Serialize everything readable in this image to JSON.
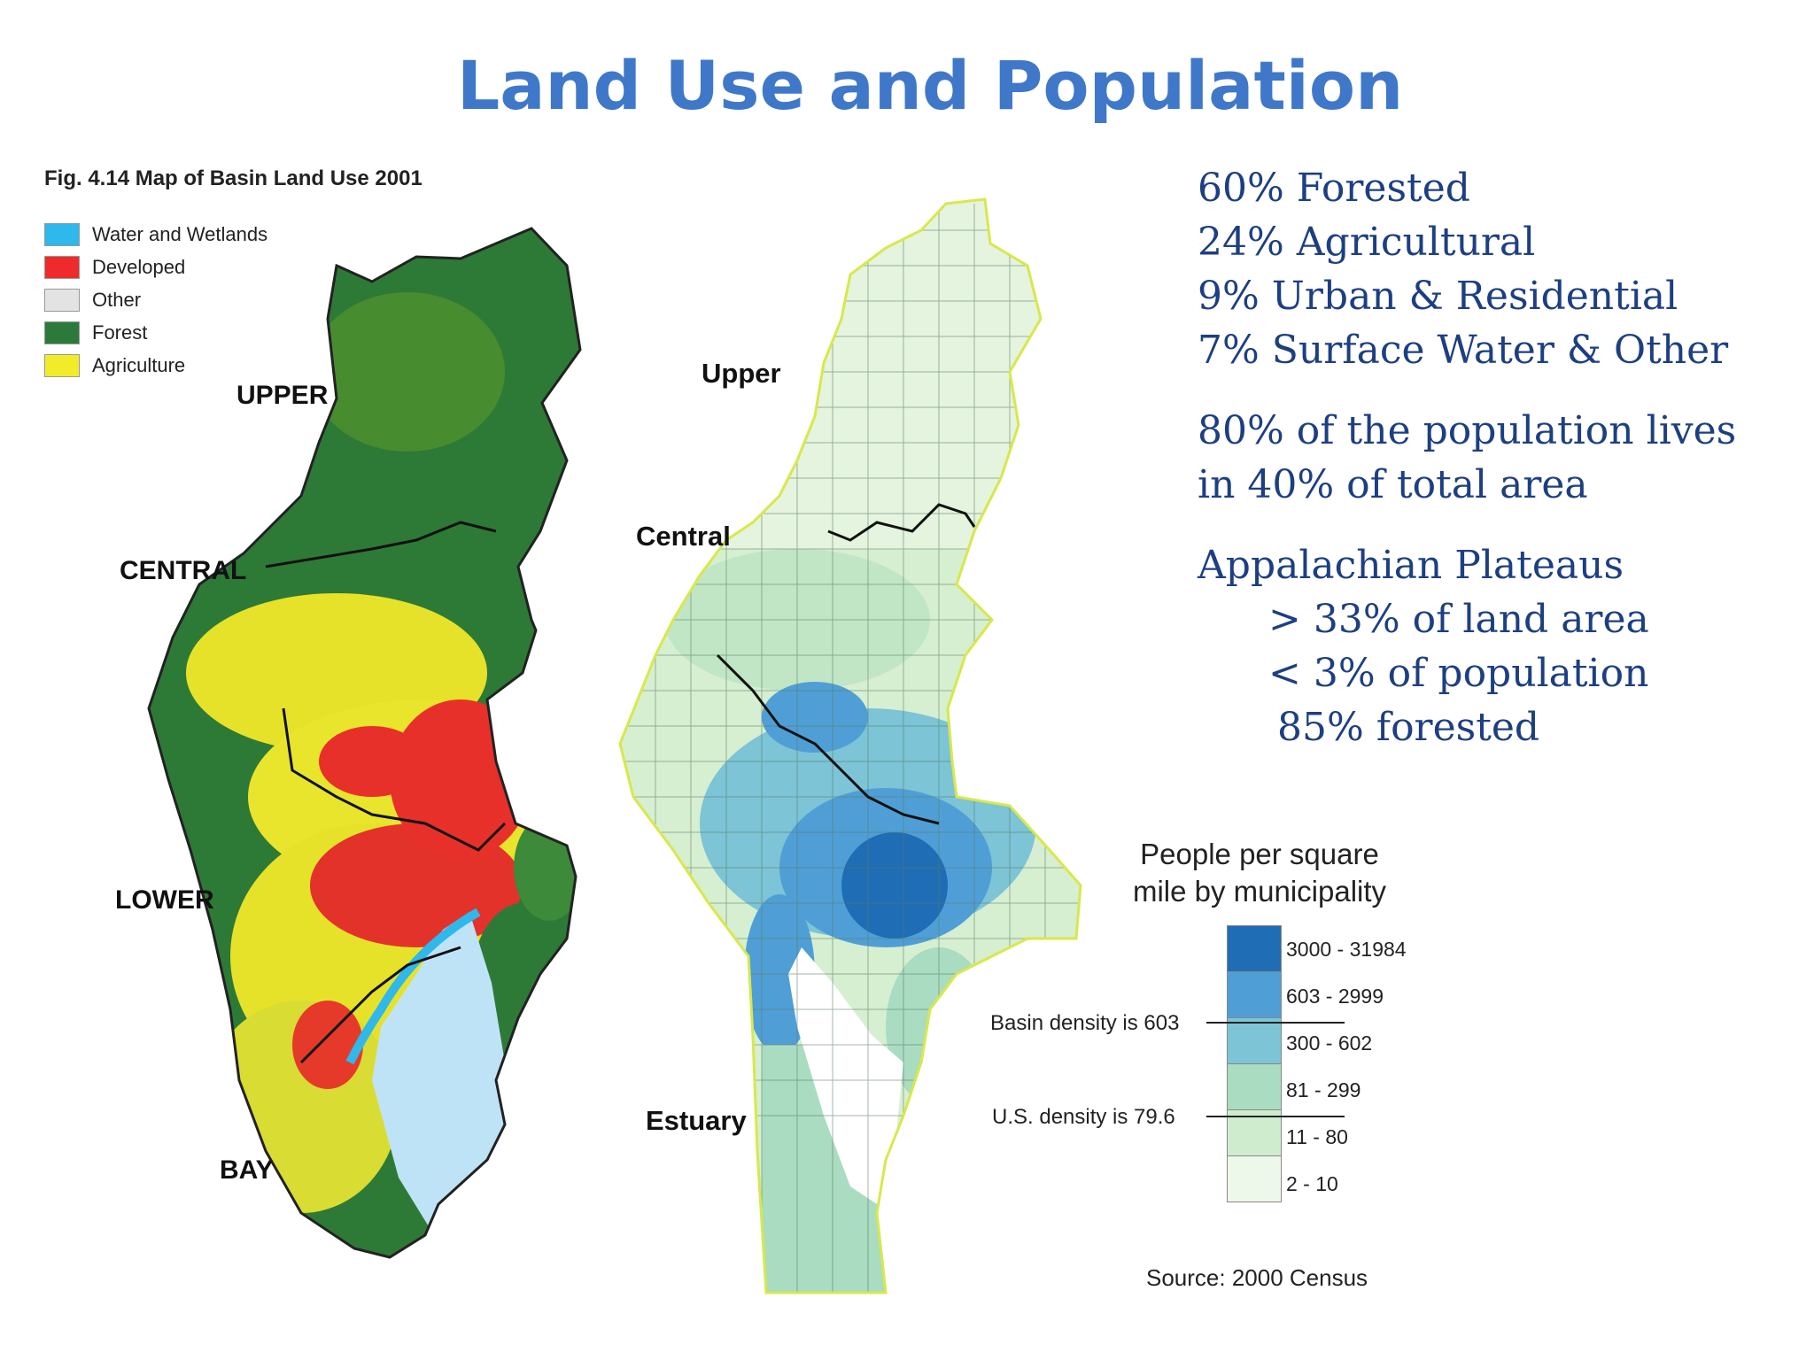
{
  "title": "Land Use and Population",
  "left_map": {
    "caption": "Fig. 4.14 Map of Basin Land Use 2001",
    "legend": [
      {
        "label": "Water and Wetlands",
        "color": "#2fb8ec"
      },
      {
        "label": "Developed",
        "color": "#ee2a2a"
      },
      {
        "label": "Other",
        "color": "#e3e3e3"
      },
      {
        "label": "Forest",
        "color": "#2c7a3a"
      },
      {
        "label": "Agriculture",
        "color": "#f0ec2a"
      }
    ],
    "regions": [
      "UPPER",
      "CENTRAL",
      "LOWER",
      "BAY"
    ]
  },
  "right_map": {
    "regions": [
      "Upper",
      "Central",
      "Estuary"
    ],
    "legend_title_line1": "People per square",
    "legend_title_line2": "mile by municipality",
    "classes": [
      {
        "label": "3000 - 31984",
        "color": "#1f6db5"
      },
      {
        "label": "603 - 2999",
        "color": "#4f9fd6"
      },
      {
        "label": "300 - 602",
        "color": "#7cc4d6"
      },
      {
        "label": "81 - 299",
        "color": "#a9dcc0"
      },
      {
        "label": "11 - 80",
        "color": "#cfeccf"
      },
      {
        "label": "2 - 10",
        "color": "#eef8ea"
      }
    ],
    "basin_density": "Basin density is 603",
    "us_density": "U.S. density is 79.6",
    "source": "Source:  2000 Census"
  },
  "stats": {
    "forested": "60% Forested",
    "agricultural": "24% Agricultural",
    "urban": "9% Urban & Residential",
    "water": "7% Surface Water & Other",
    "pop_line1": "80% of the population lives",
    "pop_line2": "in 40% of total area",
    "plateau_title": "Appalachian Plateaus",
    "plateau_land": "> 33% of land area",
    "plateau_pop": "< 3% of population",
    "plateau_forest": "85% forested"
  }
}
